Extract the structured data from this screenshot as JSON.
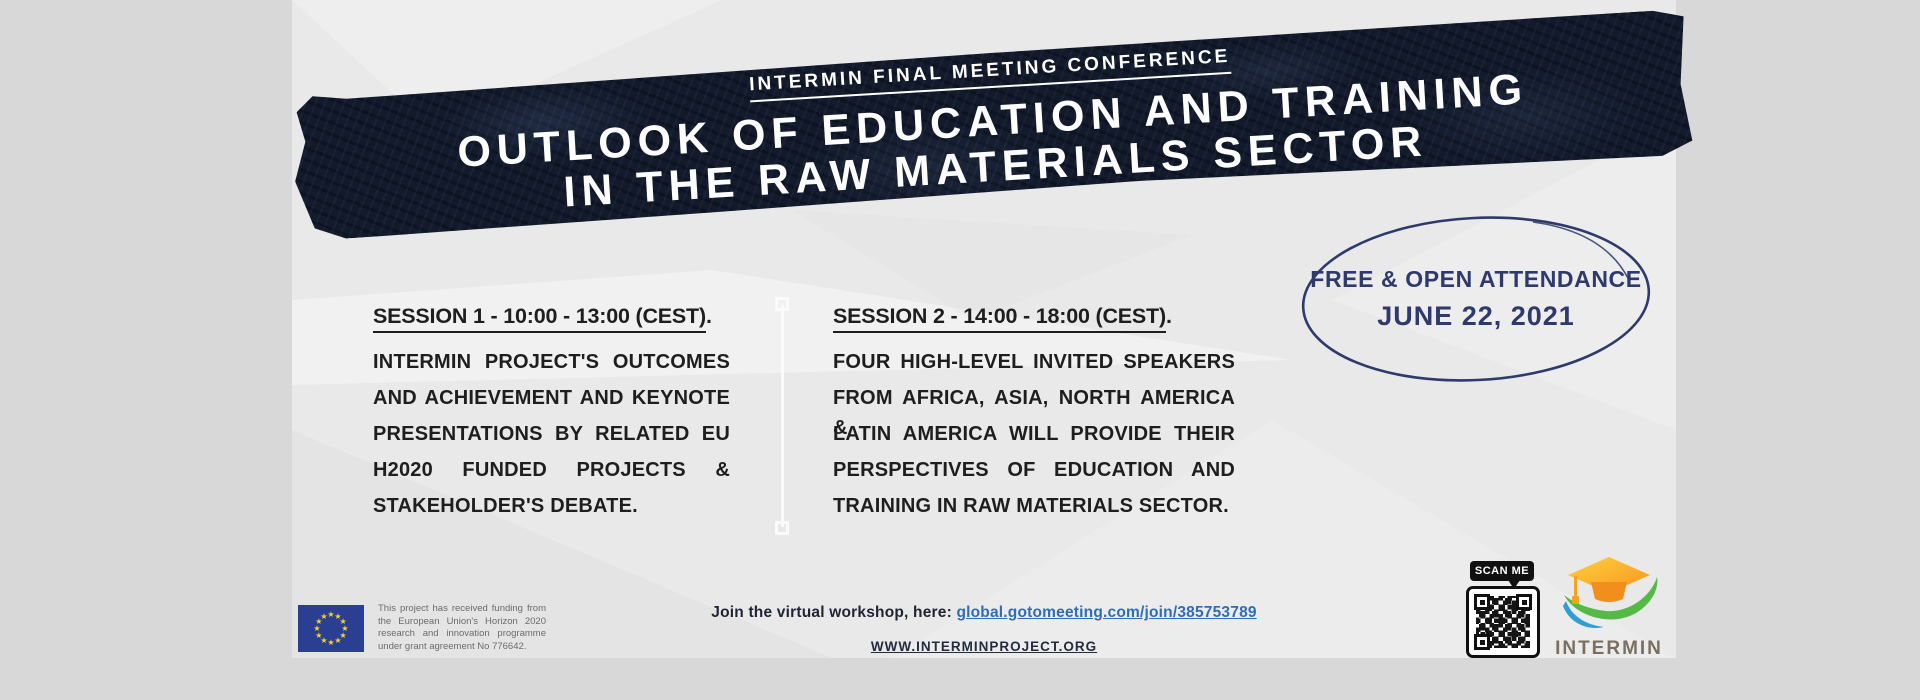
{
  "banner": {
    "kicker": "INTERMIN FINAL MEETING CONFERENCE",
    "title_line1": "OUTLOOK OF EDUCATION AND TRAINING",
    "title_line2": "IN THE RAW MATERIALS SECTOR"
  },
  "sessions": [
    {
      "heading": "SESSION 1 - 10:00 - 13:00 (CEST)",
      "heading_suffix": ".",
      "lines": [
        "INTERMIN PROJECT'S OUTCOMES",
        "AND ACHIEVEMENT AND KEYNOTE",
        "PRESENTATIONS BY RELATED EU",
        "H2020 FUNDED PROJECTS &",
        "STAKEHOLDER'S DEBATE."
      ]
    },
    {
      "heading": "SESSION 2 - 14:00 - 18:00 (CEST)",
      "heading_suffix": ".",
      "lines": [
        "FOUR HIGH-LEVEL INVITED SPEAKERS",
        "FROM AFRICA, ASIA, NORTH AMERICA &",
        "LATIN AMERICA WILL PROVIDE THEIR",
        "PERSPECTIVES OF EDUCATION AND",
        "TRAINING IN RAW MATERIALS SECTOR."
      ]
    }
  ],
  "badge": {
    "line1": "FREE & OPEN ATTENDANCE",
    "line2": "JUNE 22, 2021"
  },
  "footer": {
    "funding_lines": [
      "This project has received funding from",
      "the European Union's Horizon 2020",
      "research and innovation programme",
      "under grant agreement No 776642."
    ],
    "join_label": "Join the virtual workshop, here: ",
    "join_link": "global.gotomeeting.com/join/385753789",
    "website": "WWW.INTERMINPROJECT.ORG",
    "scan_me": "SCAN ME",
    "logo_text": "INTERMIN"
  },
  "colors": {
    "tape_navy": "#121a2c",
    "badge_navy": "#2e3a6b",
    "link_blue": "#2e6db6",
    "eu_flag_blue": "#2b3f92",
    "eu_star_yellow": "#f8d12e",
    "logo_orange": "#f7941e",
    "logo_yellow": "#ffd23f",
    "logo_green": "#56b947",
    "logo_blue": "#2d9fd6",
    "logo_text_taupe": "#7b7060",
    "poster_grey": "#e9e9e9"
  }
}
